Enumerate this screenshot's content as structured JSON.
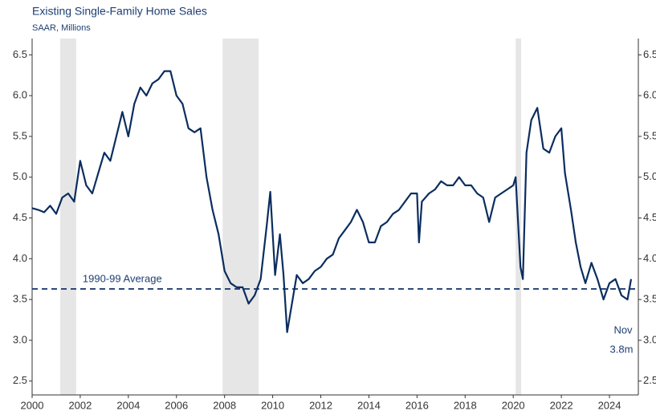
{
  "chart_data": {
    "type": "line",
    "title": "Existing Single-Family Home Sales",
    "subtitle": "SAAR, Millions",
    "x": [
      2000.0,
      2000.25,
      2000.5,
      2000.75,
      2001.0,
      2001.25,
      2001.5,
      2001.75,
      2002.0,
      2002.25,
      2002.5,
      2002.75,
      2003.0,
      2003.25,
      2003.5,
      2003.75,
      2004.0,
      2004.25,
      2004.5,
      2004.75,
      2005.0,
      2005.25,
      2005.5,
      2005.75,
      2006.0,
      2006.25,
      2006.5,
      2006.75,
      2007.0,
      2007.25,
      2007.5,
      2007.75,
      2008.0,
      2008.25,
      2008.5,
      2008.75,
      2009.0,
      2009.25,
      2009.5,
      2009.75,
      2009.9,
      2010.1,
      2010.3,
      2010.45,
      2010.6,
      2010.8,
      2011.0,
      2011.25,
      2011.5,
      2011.75,
      2012.0,
      2012.25,
      2012.5,
      2012.75,
      2013.0,
      2013.25,
      2013.5,
      2013.75,
      2014.0,
      2014.25,
      2014.5,
      2014.75,
      2015.0,
      2015.25,
      2015.5,
      2015.75,
      2016.0,
      2016.08,
      2016.2,
      2016.5,
      2016.75,
      2017.0,
      2017.25,
      2017.5,
      2017.75,
      2018.0,
      2018.25,
      2018.5,
      2018.75,
      2019.0,
      2019.25,
      2019.5,
      2019.75,
      2020.0,
      2020.1,
      2020.3,
      2020.4,
      2020.55,
      2020.75,
      2021.0,
      2021.25,
      2021.5,
      2021.75,
      2022.0,
      2022.15,
      2022.4,
      2022.6,
      2022.8,
      2023.0,
      2023.25,
      2023.5,
      2023.75,
      2024.0,
      2024.25,
      2024.5,
      2024.75,
      2024.9
    ],
    "series": [
      {
        "name": "Existing Single-Family Home Sales",
        "color": "#0b2d5f",
        "values": [
          4.62,
          4.6,
          4.57,
          4.65,
          4.55,
          4.75,
          4.8,
          4.7,
          5.2,
          4.9,
          4.8,
          5.05,
          5.3,
          5.2,
          5.5,
          5.8,
          5.5,
          5.9,
          6.1,
          6.0,
          6.15,
          6.2,
          6.3,
          6.3,
          6.0,
          5.9,
          5.6,
          5.55,
          5.6,
          5.0,
          4.6,
          4.3,
          3.85,
          3.7,
          3.65,
          3.65,
          3.45,
          3.55,
          3.75,
          4.4,
          4.82,
          3.8,
          4.3,
          3.8,
          3.1,
          3.45,
          3.8,
          3.7,
          3.75,
          3.85,
          3.9,
          4.0,
          4.05,
          4.25,
          4.35,
          4.45,
          4.6,
          4.45,
          4.2,
          4.2,
          4.4,
          4.45,
          4.55,
          4.6,
          4.7,
          4.8,
          4.8,
          4.2,
          4.7,
          4.8,
          4.85,
          4.95,
          4.9,
          4.9,
          5.0,
          4.9,
          4.9,
          4.8,
          4.75,
          4.45,
          4.75,
          4.8,
          4.85,
          4.9,
          5.0,
          3.9,
          3.75,
          5.3,
          5.7,
          5.85,
          5.35,
          5.3,
          5.5,
          5.6,
          5.05,
          4.6,
          4.2,
          3.9,
          3.7,
          3.95,
          3.75,
          3.5,
          3.7,
          3.75,
          3.55,
          3.5,
          3.75
        ]
      }
    ],
    "recessions": [
      [
        2001.17,
        2001.83
      ],
      [
        2007.92,
        2009.42
      ],
      [
        2020.1,
        2020.33
      ]
    ],
    "average": {
      "value": 3.63,
      "label": "1990-99 Average"
    },
    "annotation": [
      "Nov",
      "3.8m"
    ],
    "xlim": [
      2000,
      2025.2
    ],
    "xticks": [
      2000,
      2002,
      2004,
      2006,
      2008,
      2010,
      2012,
      2014,
      2016,
      2018,
      2020,
      2022,
      2024
    ],
    "ylim": [
      2.33,
      6.7
    ],
    "yticks": [
      {
        "value": 2.5,
        "label": "2.5"
      },
      {
        "value": 3,
        "label": "3.0"
      },
      {
        "value": 3.5,
        "label": "3.5"
      },
      {
        "value": 4,
        "label": "4.0"
      },
      {
        "value": 4.5,
        "label": "4.5"
      },
      {
        "value": 5,
        "label": "5.0"
      },
      {
        "value": 5.5,
        "label": "5.5"
      },
      {
        "value": 6,
        "label": "6.0"
      },
      {
        "value": 6.5,
        "label": "6.5"
      }
    ]
  }
}
